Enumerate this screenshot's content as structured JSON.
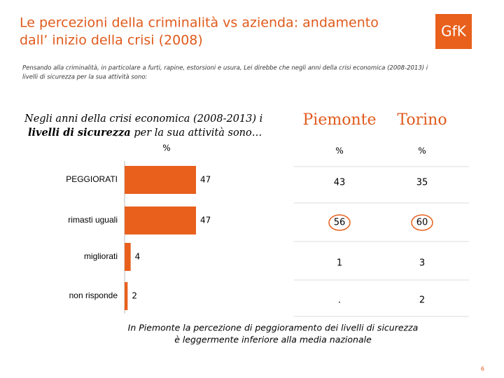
{
  "header": {
    "title": [
      "Le percezioni della criminalità vs azienda: andamento",
      "dall’ inizio della crisi (2008)"
    ],
    "logo": "GfK",
    "question": [
      "Pensando alla criminalità, in particolare a furti, rapine, estorsioni e usura, Lei direbbe che negli anni della crisi economica (2008-2013) i",
      "livelli di sicurezza per la sua attività sono:"
    ]
  },
  "chart_data": {
    "type": "bar",
    "orientation": "horizontal",
    "title": [
      "Negli anni della crisi economica (2008-2013) i",
      "livelli di sicurezza",
      " per la sua attività sono…"
    ],
    "unit": "%",
    "categories": [
      "PEGGIORATI",
      "rimasti uguali",
      "migliorati",
      "non risponde"
    ],
    "values": [
      47,
      47,
      4,
      2
    ],
    "color": "#e8601c"
  },
  "table": {
    "columns": [
      "Piemonte",
      "Torino"
    ],
    "units": [
      "%",
      "%"
    ],
    "rows": [
      [
        "43",
        "35"
      ],
      [
        "56",
        "60"
      ],
      [
        "1",
        "3"
      ],
      [
        ".",
        "2"
      ]
    ]
  },
  "note": [
    "In Piemonte la percezione di peggioramento dei livelli di sicurezza",
    "è leggermente inferiore alla media nazionale"
  ],
  "page_number": "6"
}
